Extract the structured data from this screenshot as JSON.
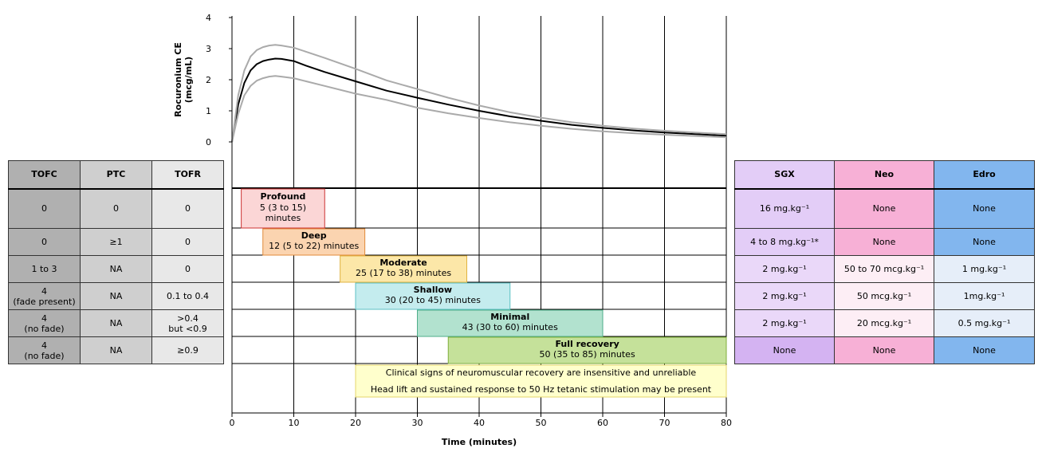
{
  "chart_data": {
    "type": "line",
    "xlabel": "Time (minutes)",
    "ylabel": "Rocuronium CE (mcg/mL)",
    "ylabel_lines": [
      "Rocuronium CE",
      "(mcg/mL)"
    ],
    "xlim": [
      0,
      80
    ],
    "ylim": [
      0,
      4
    ],
    "x_ticks": [
      "0",
      "10",
      "20",
      "30",
      "40",
      "50",
      "60",
      "70",
      "80"
    ],
    "y_ticks": [
      "0",
      "1",
      "2",
      "3",
      "4"
    ],
    "series": [
      {
        "role": "mean",
        "color": "#000000",
        "points": [
          [
            0,
            0.0
          ],
          [
            1,
            1.2
          ],
          [
            2,
            1.9
          ],
          [
            3,
            2.3
          ],
          [
            4,
            2.5
          ],
          [
            5,
            2.6
          ],
          [
            6,
            2.65
          ],
          [
            7,
            2.68
          ],
          [
            8,
            2.67
          ],
          [
            10,
            2.6
          ],
          [
            12,
            2.45
          ],
          [
            15,
            2.25
          ],
          [
            20,
            1.95
          ],
          [
            25,
            1.65
          ],
          [
            30,
            1.42
          ],
          [
            35,
            1.2
          ],
          [
            40,
            1.0
          ],
          [
            45,
            0.82
          ],
          [
            50,
            0.68
          ],
          [
            55,
            0.55
          ],
          [
            60,
            0.45
          ],
          [
            65,
            0.37
          ],
          [
            70,
            0.3
          ],
          [
            75,
            0.25
          ],
          [
            80,
            0.2
          ]
        ]
      },
      {
        "role": "upper",
        "color": "#aaaaaa",
        "points": [
          [
            0,
            0.0
          ],
          [
            1,
            1.5
          ],
          [
            2,
            2.3
          ],
          [
            3,
            2.75
          ],
          [
            4,
            2.95
          ],
          [
            5,
            3.05
          ],
          [
            6,
            3.1
          ],
          [
            7,
            3.12
          ],
          [
            8,
            3.1
          ],
          [
            10,
            3.03
          ],
          [
            12,
            2.9
          ],
          [
            15,
            2.7
          ],
          [
            20,
            2.35
          ],
          [
            25,
            1.98
          ],
          [
            30,
            1.7
          ],
          [
            35,
            1.42
          ],
          [
            40,
            1.17
          ],
          [
            45,
            0.95
          ],
          [
            50,
            0.78
          ],
          [
            55,
            0.63
          ],
          [
            60,
            0.52
          ],
          [
            65,
            0.43
          ],
          [
            70,
            0.36
          ],
          [
            75,
            0.3
          ],
          [
            80,
            0.25
          ]
        ]
      },
      {
        "role": "lower",
        "color": "#aaaaaa",
        "points": [
          [
            0,
            0.0
          ],
          [
            1,
            0.9
          ],
          [
            2,
            1.5
          ],
          [
            3,
            1.8
          ],
          [
            4,
            1.97
          ],
          [
            5,
            2.05
          ],
          [
            6,
            2.1
          ],
          [
            7,
            2.12
          ],
          [
            8,
            2.1
          ],
          [
            10,
            2.05
          ],
          [
            12,
            1.95
          ],
          [
            15,
            1.8
          ],
          [
            20,
            1.55
          ],
          [
            25,
            1.35
          ],
          [
            30,
            1.1
          ],
          [
            35,
            0.92
          ],
          [
            40,
            0.77
          ],
          [
            45,
            0.63
          ],
          [
            50,
            0.52
          ],
          [
            55,
            0.42
          ],
          [
            60,
            0.34
          ],
          [
            65,
            0.28
          ],
          [
            70,
            0.23
          ],
          [
            75,
            0.19
          ],
          [
            80,
            0.15
          ]
        ]
      }
    ],
    "blocks": [
      {
        "title": "Profound",
        "detail": "5 (3 to 15)",
        "detail2": "minutes",
        "start": 1.5,
        "end": 15,
        "fill": "#fbd6d6",
        "stroke": "#cc3333"
      },
      {
        "title": "Deep",
        "detail": "12 (5 to 22) minutes",
        "start": 5,
        "end": 21.5,
        "fill": "#fbd4b0",
        "stroke": "#e08a3a"
      },
      {
        "title": "Moderate",
        "detail": "25 (17 to 38) minutes",
        "start": 17.5,
        "end": 38,
        "fill": "#fce7a8",
        "stroke": "#e0b340"
      },
      {
        "title": "Shallow",
        "detail": "30 (20 to 45) minutes",
        "start": 20,
        "end": 45,
        "fill": "#c4ecee",
        "stroke": "#5bc0c4"
      },
      {
        "title": "Minimal",
        "detail": "43 (30 to 60) minutes",
        "start": 30,
        "end": 60,
        "fill": "#b2e2cf",
        "stroke": "#4fae8a"
      },
      {
        "title": "Full recovery",
        "detail": "50 (35 to 85) minutes",
        "start": 35,
        "end": 80,
        "fill": "#c5e19a",
        "stroke": "#7fae3a"
      }
    ],
    "note": {
      "line1": "Clinical signs of neuromuscular recovery are insensitive and unreliable",
      "line2": "Head lift and sustained response to 50 Hz tetanic stimulation may be present",
      "start": 20,
      "end": 80,
      "fill": "#ffffcc",
      "stroke": "#e6d66a"
    }
  },
  "left_table": {
    "headers": [
      "TOFC",
      "PTC",
      "TOFR"
    ],
    "rows": [
      [
        "0",
        "0",
        "0"
      ],
      [
        "0",
        "≥1",
        "0"
      ],
      [
        "1 to 3",
        "NA",
        "0"
      ],
      [
        "4",
        "NA",
        "0.1 to 0.4"
      ],
      [
        "4",
        "NA",
        ">0.4"
      ],
      [
        "4",
        "NA",
        "≥0.9"
      ]
    ],
    "sub": {
      "r3c0": "(fade present)",
      "r4c0": "(no fade)",
      "r4c2": "but <0.9",
      "r5c0": "(no fade)"
    }
  },
  "right_table": {
    "headers": [
      "SGX",
      "Neo",
      "Edro"
    ],
    "rows": [
      [
        "16 mg.kg⁻¹",
        "None",
        "None"
      ],
      [
        "4 to 8 mg.kg⁻¹*",
        "None",
        "None"
      ],
      [
        "2 mg.kg⁻¹",
        "50 to 70 mcg.kg⁻¹",
        "1 mg.kg⁻¹"
      ],
      [
        "2 mg.kg⁻¹",
        "50 mcg.kg⁻¹",
        "1mg.kg⁻¹"
      ],
      [
        "2 mg.kg⁻¹",
        "20 mcg.kg⁻¹",
        "0.5 mg.kg⁻¹"
      ],
      [
        "None",
        "None",
        "None"
      ]
    ]
  }
}
